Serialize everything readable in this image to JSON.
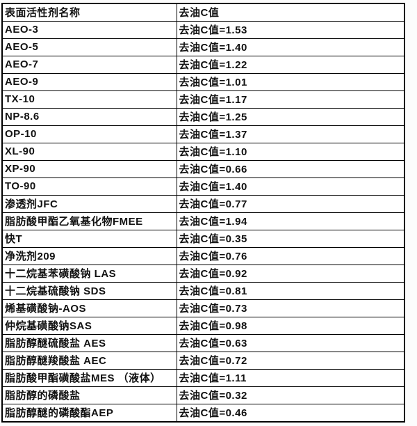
{
  "colors": {
    "border": "#000000",
    "text": "#111111",
    "cell_background": "#ffffff",
    "page_background": "#fcfcfc"
  },
  "table": {
    "header": [
      "表面活性剂名称",
      "去油C值"
    ],
    "rows": [
      {
        "name": "AEO-3",
        "value": "去油C值=1.53"
      },
      {
        "name": "AEO-5",
        "value": "去油C值=1.40"
      },
      {
        "name": "AEO-7",
        "value": "去油C值=1.22"
      },
      {
        "name": "AEO-9",
        "value": "去油C值=1.01"
      },
      {
        "name": "TX-10",
        "value": "去油C值=1.17"
      },
      {
        "name": "NP-8.6",
        "value": "去油C值=1.25"
      },
      {
        "name": "OP-10",
        "value": "去油C值=1.37"
      },
      {
        "name": "XL-90",
        "value": "去油C值=1.10"
      },
      {
        "name": "XP-90",
        "value": "去油C值=0.66"
      },
      {
        "name": "TO-90",
        "value": "去油C值=1.40"
      },
      {
        "name": "渗透剂JFC",
        "value": "去油C值=0.77"
      },
      {
        "name": "脂肪酸甲酯乙氧基化物FMEE",
        "value": "去油C值=1.94"
      },
      {
        "name": "快T",
        "value": "去油C值=0.35"
      },
      {
        "name": "净洗剂209",
        "value": "去油C值=0.76"
      },
      {
        "name": "十二烷基苯磺酸钠 LAS",
        "value": "去油C值=0.92"
      },
      {
        "name": "十二烷基硫酸钠 SDS",
        "value": "去油C值=0.81"
      },
      {
        "name": "烯基磺酸钠-AOS",
        "value": "去油C值=0.73"
      },
      {
        "name": "仲烷基磺酸钠SAS",
        "value": "去油C值=0.98"
      },
      {
        "name": "脂肪醇醚硫酸盐 AES",
        "value": "去油C值=0.63"
      },
      {
        "name": "脂肪醇醚羧酸盐 AEC",
        "value": "去油C值=0.72"
      },
      {
        "name": "脂肪酸甲酯磺酸盐MES （液体）",
        "value": "去油C值=1.11"
      },
      {
        "name": "脂肪醇的磷酸盐",
        "value": "去油C值=0.32"
      },
      {
        "name": "脂肪醇醚的磷酸酯AEP",
        "value": "去油C值=0.46"
      }
    ]
  }
}
